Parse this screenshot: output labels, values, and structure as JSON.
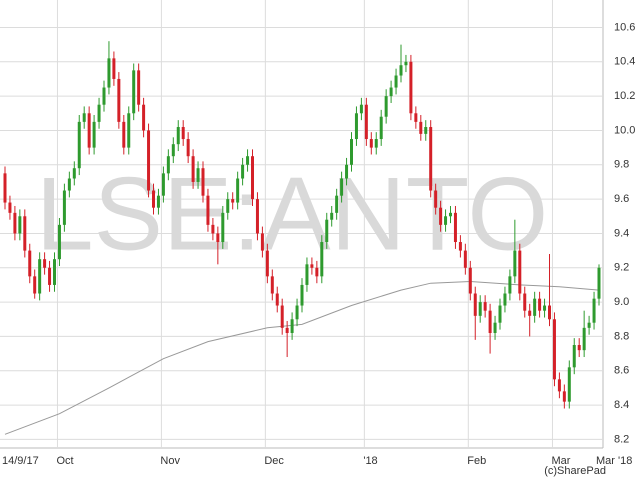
{
  "chart_data": {
    "type": "candlestick",
    "watermark": "LSE:ANTO",
    "copyright": "(c)SharePad",
    "up_color": "#2e9a2e",
    "down_color": "#d42028",
    "grid": true,
    "ylim": [
      8.15,
      10.76
    ],
    "yticks": [
      8.2,
      8.4,
      8.6,
      8.8,
      {
        "value": 9,
        "label": "9.0"
      },
      9.2,
      9.4,
      9.6,
      9.8,
      {
        "value": 10,
        "label": "10.0"
      },
      10.2,
      10.4,
      10.6
    ],
    "categories": [
      "14/9/17",
      null,
      null,
      null,
      null,
      null,
      null,
      null,
      null,
      null,
      null,
      "Oct",
      null,
      null,
      null,
      null,
      null,
      null,
      null,
      null,
      null,
      null,
      null,
      null,
      null,
      null,
      null,
      null,
      null,
      null,
      null,
      null,
      "Nov",
      null,
      null,
      null,
      null,
      null,
      null,
      null,
      null,
      null,
      null,
      null,
      null,
      null,
      null,
      null,
      null,
      null,
      null,
      null,
      null,
      "Dec",
      null,
      null,
      null,
      null,
      null,
      null,
      null,
      null,
      null,
      null,
      null,
      null,
      null,
      null,
      null,
      null,
      null,
      null,
      null,
      "'18",
      null,
      null,
      null,
      null,
      null,
      null,
      null,
      null,
      null,
      null,
      null,
      null,
      null,
      null,
      null,
      null,
      null,
      null,
      null,
      null,
      "Feb",
      null,
      null,
      null,
      null,
      null,
      null,
      null,
      null,
      null,
      null,
      null,
      null,
      null,
      null,
      null,
      null,
      "Mar",
      null,
      null,
      null,
      null,
      null,
      null,
      null,
      null,
      "Mar '18"
    ],
    "open": [
      9.75,
      9.58,
      9.52,
      9.4,
      9.5,
      9.3,
      9.15,
      9.05,
      9.25,
      9.2,
      9.1,
      9.25,
      9.45,
      9.65,
      9.72,
      9.78,
      10.05,
      10.1,
      9.9,
      10.05,
      10.15,
      10.25,
      10.42,
      10.3,
      10.05,
      9.9,
      10.1,
      10.35,
      10.15,
      10.0,
      9.65,
      9.55,
      9.62,
      9.75,
      9.85,
      9.92,
      10.02,
      9.95,
      9.85,
      9.7,
      9.78,
      9.62,
      9.45,
      9.4,
      9.35,
      9.52,
      9.6,
      9.58,
      9.72,
      9.8,
      9.85,
      9.6,
      9.4,
      9.3,
      9.15,
      9.05,
      8.98,
      8.85,
      8.82,
      8.9,
      8.98,
      9.1,
      9.22,
      9.2,
      9.15,
      9.35,
      9.48,
      9.52,
      9.62,
      9.72,
      9.8,
      9.95,
      10.1,
      10.15,
      9.95,
      9.9,
      9.95,
      10.08,
      10.2,
      10.25,
      10.32,
      10.38,
      10.4,
      10.1,
      10.05,
      9.98,
      10.02,
      9.65,
      9.55,
      9.45,
      9.5,
      9.52,
      9.35,
      9.3,
      9.2,
      9.05,
      8.92,
      9.0,
      8.95,
      8.82,
      8.88,
      8.98,
      9.05,
      9.15,
      9.3,
      9.05,
      8.95,
      8.92,
      9.02,
      8.95,
      8.98,
      8.9,
      8.55,
      8.48,
      8.42,
      8.62,
      8.75,
      8.72,
      8.85,
      8.88,
      9.02
    ],
    "high": [
      9.79,
      9.62,
      9.56,
      9.54,
      9.54,
      9.34,
      9.19,
      9.29,
      9.29,
      9.24,
      9.29,
      9.49,
      9.69,
      9.76,
      9.82,
      10.09,
      10.14,
      10.14,
      10.09,
      10.19,
      10.29,
      10.52,
      10.46,
      10.34,
      10.09,
      10.14,
      10.39,
      10.39,
      10.19,
      10.04,
      9.69,
      9.66,
      9.79,
      9.89,
      9.96,
      10.06,
      10.06,
      9.99,
      9.89,
      9.82,
      9.82,
      9.66,
      9.49,
      9.44,
      9.56,
      9.64,
      9.64,
      9.76,
      9.84,
      9.89,
      9.89,
      9.64,
      9.44,
      9.34,
      9.19,
      9.09,
      9.02,
      8.89,
      8.94,
      9.02,
      9.14,
      9.26,
      9.26,
      9.24,
      9.39,
      9.52,
      9.56,
      9.66,
      9.76,
      9.84,
      9.99,
      10.14,
      10.19,
      10.19,
      9.99,
      9.99,
      10.12,
      10.24,
      10.29,
      10.36,
      10.5,
      10.44,
      10.44,
      10.14,
      10.09,
      10.06,
      10.06,
      9.69,
      9.59,
      9.54,
      9.56,
      9.56,
      9.39,
      9.34,
      9.24,
      9.09,
      9.04,
      9.04,
      8.99,
      8.92,
      9.02,
      9.09,
      9.19,
      9.48,
      9.34,
      9.09,
      8.99,
      9.06,
      9.06,
      9.02,
      9.28,
      8.94,
      8.59,
      8.52,
      8.66,
      8.79,
      8.79,
      8.95,
      8.92,
      9.06,
      9.22
    ],
    "low": [
      9.54,
      9.48,
      9.36,
      9.36,
      9.26,
      9.11,
      9.02,
      9.01,
      9.16,
      9.06,
      9.06,
      9.21,
      9.41,
      9.61,
      9.68,
      9.74,
      10.01,
      9.86,
      9.86,
      10.01,
      10.11,
      10.21,
      10.26,
      10.01,
      9.86,
      9.86,
      10.06,
      10.11,
      9.96,
      9.61,
      9.51,
      9.51,
      9.58,
      9.71,
      9.81,
      9.88,
      9.91,
      9.81,
      9.66,
      9.66,
      9.58,
      9.41,
      9.36,
      9.22,
      9.31,
      9.48,
      9.54,
      9.54,
      9.68,
      9.76,
      9.56,
      9.36,
      9.26,
      9.11,
      9.01,
      8.94,
      8.81,
      8.68,
      8.78,
      8.86,
      8.94,
      9.06,
      9.16,
      9.11,
      9.11,
      9.31,
      9.44,
      9.48,
      9.58,
      9.68,
      9.76,
      9.91,
      10.06,
      9.91,
      9.86,
      9.86,
      9.91,
      10.04,
      10.16,
      10.21,
      10.28,
      10.34,
      10.06,
      10.01,
      9.94,
      9.94,
      9.61,
      9.51,
      9.41,
      9.41,
      9.46,
      9.31,
      9.26,
      9.16,
      9.01,
      8.78,
      8.88,
      8.91,
      8.7,
      8.78,
      8.84,
      8.94,
      9.01,
      9.11,
      9.01,
      8.91,
      8.8,
      8.88,
      8.91,
      8.91,
      8.86,
      8.51,
      8.44,
      8.38,
      8.38,
      8.58,
      8.68,
      8.68,
      8.81,
      8.84,
      8.98
    ],
    "close": [
      9.58,
      9.52,
      9.4,
      9.5,
      9.3,
      9.15,
      9.05,
      9.25,
      9.2,
      9.1,
      9.25,
      9.45,
      9.65,
      9.72,
      9.78,
      10.05,
      10.1,
      9.9,
      10.05,
      10.15,
      10.25,
      10.42,
      10.3,
      10.05,
      9.9,
      10.1,
      10.35,
      10.15,
      10.0,
      9.65,
      9.55,
      9.62,
      9.75,
      9.85,
      9.92,
      10.02,
      9.95,
      9.85,
      9.7,
      9.78,
      9.62,
      9.45,
      9.4,
      9.35,
      9.52,
      9.6,
      9.58,
      9.72,
      9.8,
      9.85,
      9.6,
      9.4,
      9.3,
      9.15,
      9.05,
      8.98,
      8.85,
      8.82,
      8.9,
      8.98,
      9.1,
      9.22,
      9.2,
      9.15,
      9.35,
      9.48,
      9.52,
      9.62,
      9.72,
      9.8,
      9.95,
      10.1,
      10.15,
      9.95,
      9.9,
      9.95,
      10.08,
      10.2,
      10.25,
      10.32,
      10.38,
      10.4,
      10.1,
      10.05,
      9.98,
      10.02,
      9.65,
      9.55,
      9.45,
      9.5,
      9.52,
      9.35,
      9.3,
      9.2,
      9.05,
      8.92,
      9.0,
      8.95,
      8.82,
      8.88,
      8.98,
      9.05,
      9.15,
      9.3,
      9.05,
      8.95,
      8.92,
      9.02,
      8.95,
      8.98,
      8.9,
      8.55,
      8.48,
      8.42,
      8.62,
      8.75,
      8.72,
      8.85,
      8.88,
      9.02,
      9.2
    ],
    "ma": {
      "color": "#999999",
      "x": [
        0,
        11,
        21,
        32,
        41,
        53,
        60,
        70,
        80,
        86,
        94,
        104,
        112,
        120
      ],
      "values": [
        8.23,
        8.35,
        8.5,
        8.67,
        8.77,
        8.85,
        8.87,
        8.98,
        9.07,
        9.11,
        9.12,
        9.1,
        9.09,
        9.07
      ]
    }
  }
}
